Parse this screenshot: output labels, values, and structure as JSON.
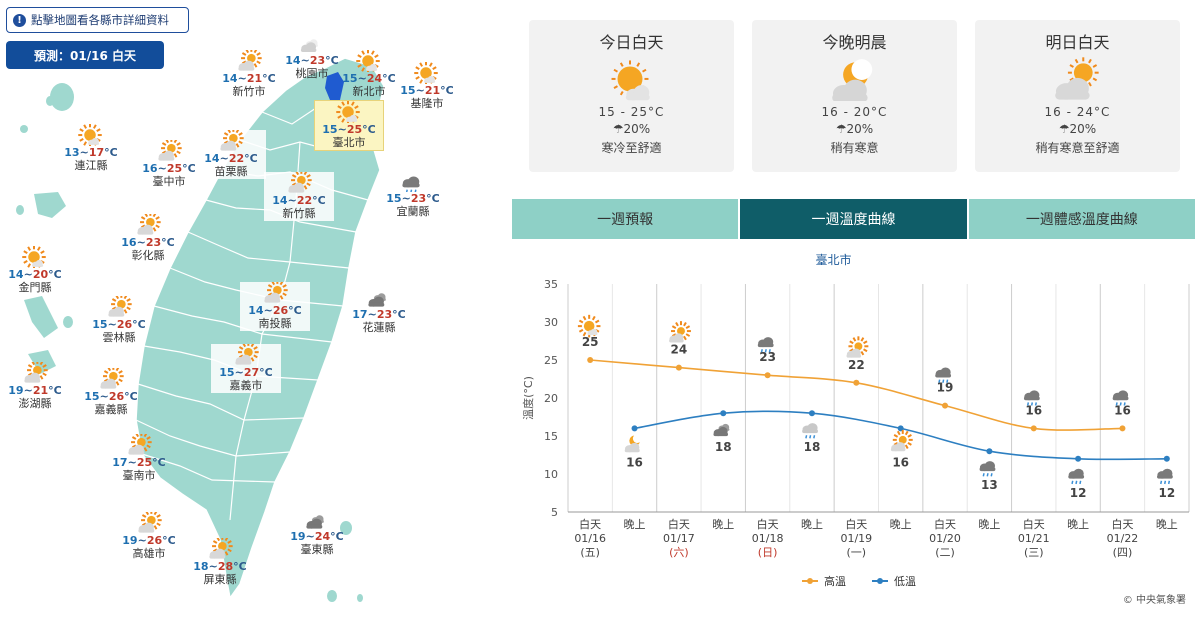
{
  "map": {
    "hint_label": "點擊地圖看各縣市詳細資料",
    "hint_icon": "info-icon",
    "forecast_label": "預測：01/16 白天",
    "cities": [
      {
        "id": "taoyuan",
        "name": "桃園市",
        "lo": "14",
        "hi": "23",
        "icon": "cloudy-icon"
      },
      {
        "id": "newtaipei",
        "name": "新北市",
        "lo": "15",
        "hi": "24",
        "icon": "sunny-icon"
      },
      {
        "id": "hsinchu-city",
        "name": "新竹市",
        "lo": "14",
        "hi": "21",
        "icon": "partly-cloudy-icon"
      },
      {
        "id": "keelung",
        "name": "基隆市",
        "lo": "15",
        "hi": "21",
        "icon": "sunny-icon"
      },
      {
        "id": "taipei",
        "name": "臺北市",
        "lo": "15",
        "hi": "25",
        "icon": "sunny-icon"
      },
      {
        "id": "lienchiang",
        "name": "連江縣",
        "lo": "13",
        "hi": "17",
        "icon": "sunny-icon"
      },
      {
        "id": "taichung",
        "name": "臺中市",
        "lo": "16",
        "hi": "25",
        "icon": "partly-cloudy-icon"
      },
      {
        "id": "miaoli",
        "name": "苗栗縣",
        "lo": "14",
        "hi": "22",
        "icon": "partly-cloudy-icon"
      },
      {
        "id": "hsinchu-county",
        "name": "新竹縣",
        "lo": "14",
        "hi": "22",
        "icon": "partly-cloudy-icon"
      },
      {
        "id": "yilan",
        "name": "宜蘭縣",
        "lo": "15",
        "hi": "23",
        "icon": "rain-icon"
      },
      {
        "id": "changhua",
        "name": "彰化縣",
        "lo": "16",
        "hi": "23",
        "icon": "partly-cloudy-icon"
      },
      {
        "id": "kinmen",
        "name": "金門縣",
        "lo": "14",
        "hi": "20",
        "icon": "sunny-icon"
      },
      {
        "id": "nantou",
        "name": "南投縣",
        "lo": "14",
        "hi": "26",
        "icon": "partly-cloudy-icon"
      },
      {
        "id": "yunlin",
        "name": "雲林縣",
        "lo": "15",
        "hi": "26",
        "icon": "partly-cloudy-icon"
      },
      {
        "id": "hualien",
        "name": "花蓮縣",
        "lo": "17",
        "hi": "23",
        "icon": "dark-cloud-icon"
      },
      {
        "id": "penghu",
        "name": "澎湖縣",
        "lo": "19",
        "hi": "21",
        "icon": "partly-cloudy-icon"
      },
      {
        "id": "chiayi-county",
        "name": "嘉義縣",
        "lo": "15",
        "hi": "26",
        "icon": "partly-cloudy-icon"
      },
      {
        "id": "chiayi-city",
        "name": "嘉義市",
        "lo": "15",
        "hi": "27",
        "icon": "partly-cloudy-icon"
      },
      {
        "id": "tainan",
        "name": "臺南市",
        "lo": "17",
        "hi": "25",
        "icon": "partly-cloudy-icon"
      },
      {
        "id": "kaohsiung",
        "name": "高雄市",
        "lo": "19",
        "hi": "26",
        "icon": "partly-cloudy-icon"
      },
      {
        "id": "taitung",
        "name": "臺東縣",
        "lo": "19",
        "hi": "24",
        "icon": "dark-cloud-icon"
      },
      {
        "id": "pingtung",
        "name": "屏東縣",
        "lo": "18",
        "hi": "28",
        "icon": "partly-cloudy-icon"
      }
    ],
    "colors": {
      "land": "#9fd8cf",
      "border": "#ffffff",
      "sea": "#ffffff",
      "highlight": "#1f5bd0"
    }
  },
  "cards": [
    {
      "title": "今日白天",
      "temp": "15 - 25°C",
      "rain": "☂20%",
      "desc": "寒冷至舒適",
      "icon": "sunny-icon"
    },
    {
      "title": "今晚明晨",
      "temp": "16 - 20°C",
      "rain": "☂20%",
      "desc": "稍有寒意",
      "icon": "moon-cloud-icon"
    },
    {
      "title": "明日白天",
      "temp": "16 - 24°C",
      "rain": "☂20%",
      "desc": "稍有寒意至舒適",
      "icon": "partly-cloudy-icon"
    }
  ],
  "tabs": [
    {
      "label": "一週預報",
      "active": false
    },
    {
      "label": "一週溫度曲線",
      "active": true
    },
    {
      "label": "一週體感溫度曲線",
      "active": false
    }
  ],
  "chart_data": {
    "type": "line",
    "title": "臺北市",
    "ylabel": "溫度(°C)",
    "ylim": [
      5,
      35
    ],
    "yticks": [
      5,
      10,
      15,
      20,
      25,
      30,
      35
    ],
    "categories": [
      {
        "period": "白天",
        "date": "01/16",
        "dow": "(五)",
        "weekend": false
      },
      {
        "period": "晚上",
        "date": "",
        "dow": "",
        "weekend": false
      },
      {
        "period": "白天",
        "date": "01/17",
        "dow": "(六)",
        "weekend": true
      },
      {
        "period": "晚上",
        "date": "",
        "dow": "",
        "weekend": false
      },
      {
        "period": "白天",
        "date": "01/18",
        "dow": "(日)",
        "weekend": true
      },
      {
        "period": "晚上",
        "date": "",
        "dow": "",
        "weekend": false
      },
      {
        "period": "白天",
        "date": "01/19",
        "dow": "(一)",
        "weekend": false
      },
      {
        "period": "晚上",
        "date": "",
        "dow": "",
        "weekend": false
      },
      {
        "period": "白天",
        "date": "01/20",
        "dow": "(二)",
        "weekend": false
      },
      {
        "period": "晚上",
        "date": "",
        "dow": "",
        "weekend": false
      },
      {
        "period": "白天",
        "date": "01/21",
        "dow": "(三)",
        "weekend": false
      },
      {
        "period": "晚上",
        "date": "",
        "dow": "",
        "weekend": false
      },
      {
        "period": "白天",
        "date": "01/22",
        "dow": "(四)",
        "weekend": false
      },
      {
        "period": "晚上",
        "date": "",
        "dow": "",
        "weekend": false
      }
    ],
    "series": [
      {
        "name": "高溫",
        "color": "#f0a236",
        "values": [
          25,
          null,
          24,
          null,
          23,
          null,
          22,
          null,
          19,
          null,
          16,
          null,
          16,
          null
        ]
      },
      {
        "name": "低溫",
        "color": "#2d7fc1",
        "values": [
          null,
          16,
          null,
          18,
          null,
          18,
          null,
          16,
          null,
          13,
          null,
          12,
          null,
          12
        ]
      }
    ],
    "point_icons": [
      "sunny-icon",
      "moon-cloud-icon",
      "partly-cloudy-icon",
      "dark-cloud-icon",
      "rain-icon",
      "drizzle-icon",
      "partly-cloudy-icon",
      "partly-cloudy-icon",
      "rain-icon",
      "rain-icon",
      "rain-icon",
      "rain-icon",
      "rain-icon",
      "rain-icon"
    ],
    "legend_position": "bottom-center",
    "weekend_color": "#c0392b"
  },
  "copyright": "© 中央氣象署"
}
